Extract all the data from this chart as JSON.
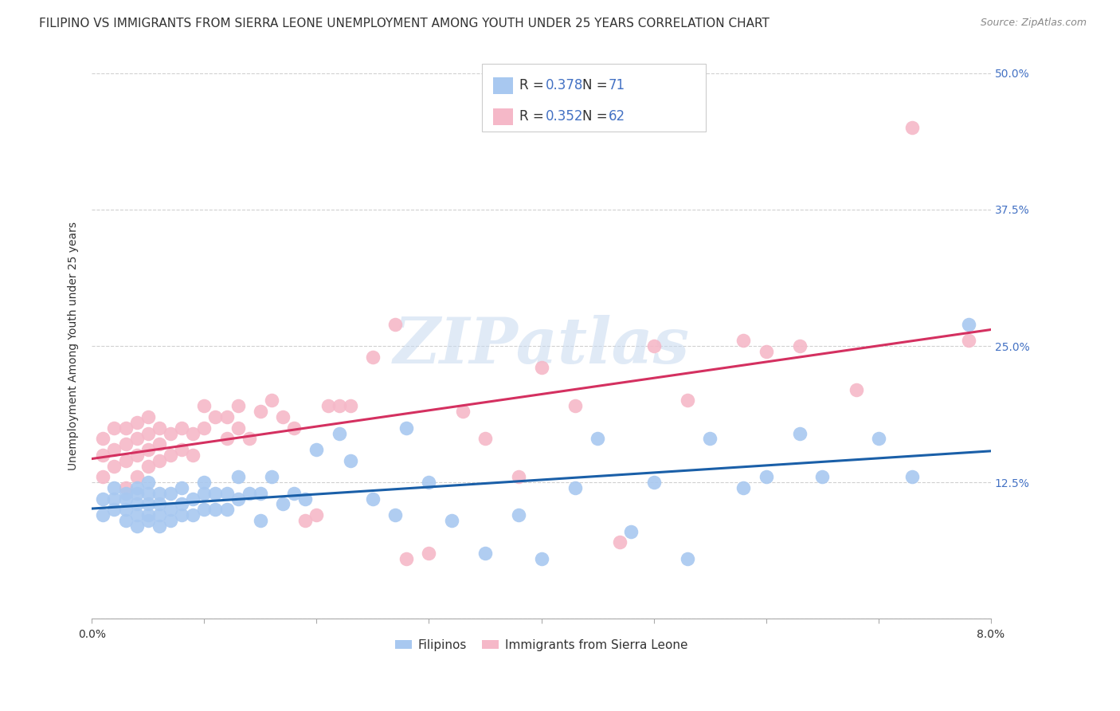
{
  "title": "FILIPINO VS IMMIGRANTS FROM SIERRA LEONE UNEMPLOYMENT AMONG YOUTH UNDER 25 YEARS CORRELATION CHART",
  "source": "Source: ZipAtlas.com",
  "ylabel": "Unemployment Among Youth under 25 years",
  "x_min": 0.0,
  "x_max": 0.08,
  "y_min": 0.0,
  "y_max": 0.5,
  "x_ticks": [
    0.0,
    0.01,
    0.02,
    0.03,
    0.04,
    0.05,
    0.06,
    0.07,
    0.08
  ],
  "y_ticks": [
    0.0,
    0.125,
    0.25,
    0.375,
    0.5
  ],
  "y_tick_labels": [
    "",
    "12.5%",
    "25.0%",
    "37.5%",
    "50.0%"
  ],
  "blue_color": "#a8c8f0",
  "blue_line_color": "#1a5fa8",
  "pink_color": "#f5b8c8",
  "pink_line_color": "#d43060",
  "legend_R_blue": "0.378",
  "legend_N_blue": "71",
  "legend_R_pink": "0.352",
  "legend_N_pink": "62",
  "legend_label_blue": "Filipinos",
  "legend_label_pink": "Immigrants from Sierra Leone",
  "watermark": "ZIPatlas",
  "blue_x": [
    0.001,
    0.001,
    0.002,
    0.002,
    0.002,
    0.003,
    0.003,
    0.003,
    0.003,
    0.004,
    0.004,
    0.004,
    0.004,
    0.004,
    0.005,
    0.005,
    0.005,
    0.005,
    0.005,
    0.006,
    0.006,
    0.006,
    0.006,
    0.007,
    0.007,
    0.007,
    0.008,
    0.008,
    0.008,
    0.009,
    0.009,
    0.01,
    0.01,
    0.01,
    0.011,
    0.011,
    0.012,
    0.012,
    0.013,
    0.013,
    0.014,
    0.015,
    0.015,
    0.016,
    0.017,
    0.018,
    0.019,
    0.02,
    0.022,
    0.023,
    0.025,
    0.027,
    0.028,
    0.03,
    0.032,
    0.035,
    0.038,
    0.04,
    0.043,
    0.045,
    0.048,
    0.05,
    0.053,
    0.055,
    0.058,
    0.06,
    0.063,
    0.065,
    0.07,
    0.073,
    0.078
  ],
  "blue_y": [
    0.11,
    0.095,
    0.1,
    0.11,
    0.12,
    0.09,
    0.1,
    0.11,
    0.115,
    0.085,
    0.095,
    0.105,
    0.115,
    0.12,
    0.09,
    0.095,
    0.105,
    0.115,
    0.125,
    0.085,
    0.095,
    0.105,
    0.115,
    0.09,
    0.1,
    0.115,
    0.095,
    0.105,
    0.12,
    0.095,
    0.11,
    0.1,
    0.115,
    0.125,
    0.1,
    0.115,
    0.1,
    0.115,
    0.11,
    0.13,
    0.115,
    0.09,
    0.115,
    0.13,
    0.105,
    0.115,
    0.11,
    0.155,
    0.17,
    0.145,
    0.11,
    0.095,
    0.175,
    0.125,
    0.09,
    0.06,
    0.095,
    0.055,
    0.12,
    0.165,
    0.08,
    0.125,
    0.055,
    0.165,
    0.12,
    0.13,
    0.17,
    0.13,
    0.165,
    0.13,
    0.27
  ],
  "pink_x": [
    0.001,
    0.001,
    0.001,
    0.002,
    0.002,
    0.002,
    0.003,
    0.003,
    0.003,
    0.003,
    0.004,
    0.004,
    0.004,
    0.004,
    0.005,
    0.005,
    0.005,
    0.005,
    0.006,
    0.006,
    0.006,
    0.007,
    0.007,
    0.008,
    0.008,
    0.009,
    0.009,
    0.01,
    0.01,
    0.011,
    0.012,
    0.012,
    0.013,
    0.013,
    0.014,
    0.015,
    0.016,
    0.017,
    0.018,
    0.019,
    0.02,
    0.021,
    0.022,
    0.023,
    0.025,
    0.027,
    0.028,
    0.03,
    0.033,
    0.035,
    0.038,
    0.04,
    0.043,
    0.047,
    0.05,
    0.053,
    0.058,
    0.06,
    0.063,
    0.068,
    0.073,
    0.078
  ],
  "pink_y": [
    0.13,
    0.15,
    0.165,
    0.14,
    0.155,
    0.175,
    0.12,
    0.145,
    0.16,
    0.175,
    0.13,
    0.15,
    0.165,
    0.18,
    0.14,
    0.155,
    0.17,
    0.185,
    0.145,
    0.16,
    0.175,
    0.15,
    0.17,
    0.155,
    0.175,
    0.15,
    0.17,
    0.175,
    0.195,
    0.185,
    0.165,
    0.185,
    0.175,
    0.195,
    0.165,
    0.19,
    0.2,
    0.185,
    0.175,
    0.09,
    0.095,
    0.195,
    0.195,
    0.195,
    0.24,
    0.27,
    0.055,
    0.06,
    0.19,
    0.165,
    0.13,
    0.23,
    0.195,
    0.07,
    0.25,
    0.2,
    0.255,
    0.245,
    0.25,
    0.21,
    0.45,
    0.255
  ],
  "background_color": "#ffffff",
  "grid_color": "#d0d0d0",
  "title_fontsize": 11,
  "axis_label_fontsize": 10,
  "tick_fontsize": 10,
  "value_color": "#4472c4",
  "text_color": "#333333",
  "source_color": "#888888"
}
